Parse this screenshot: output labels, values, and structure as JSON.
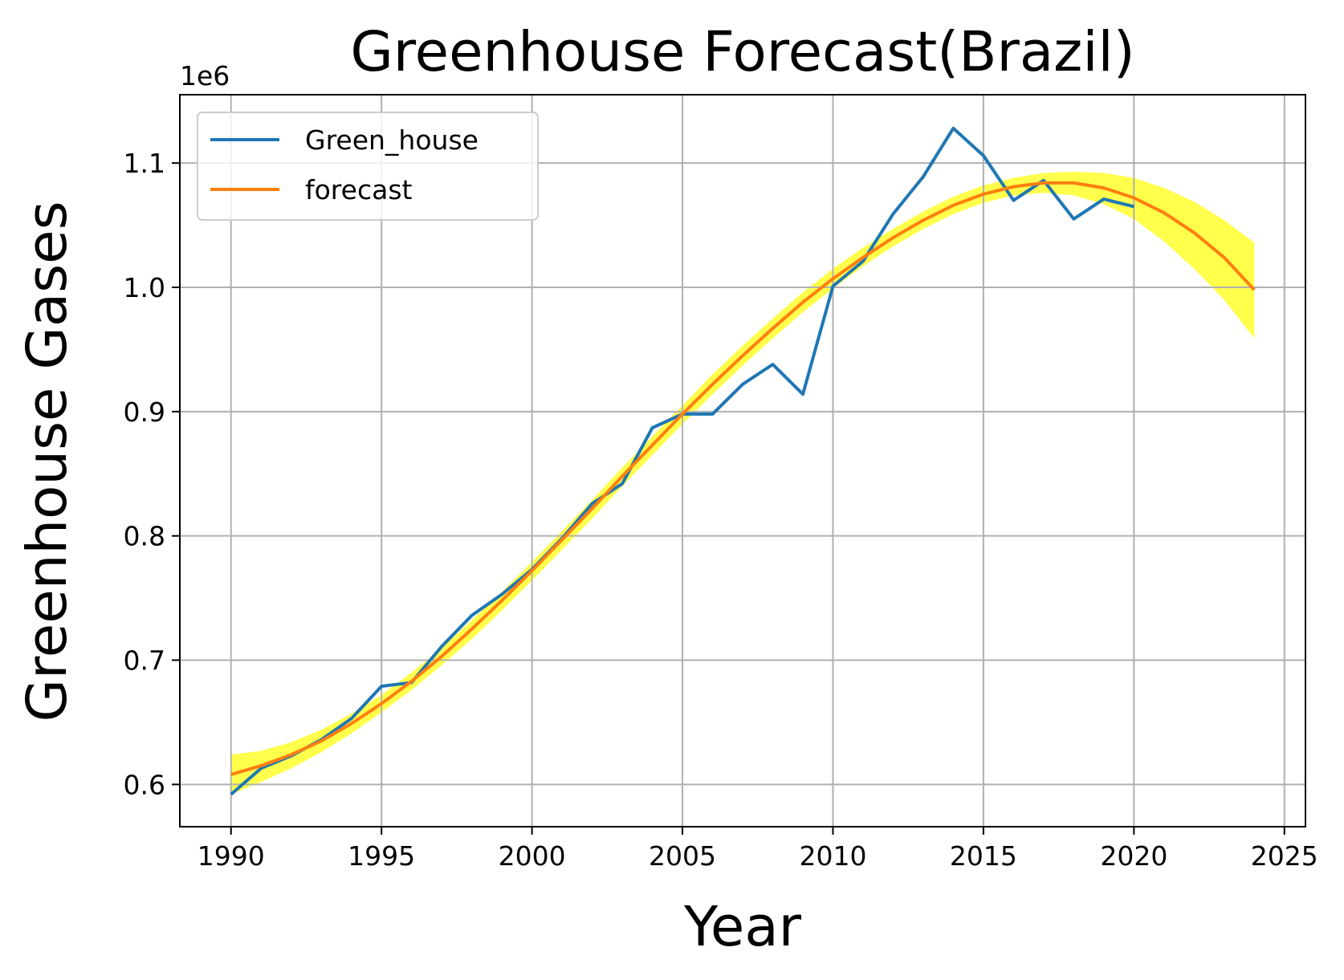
{
  "chart_data": {
    "type": "line",
    "title": "Greenhouse Forecast(Brazil)",
    "xlabel": "Year",
    "ylabel": "Greenhouse Gases",
    "y_offset_label": "1e6",
    "xlim": [
      1988.3,
      2025.7
    ],
    "ylim": [
      0.566,
      1.155
    ],
    "x_ticks": [
      1990,
      1995,
      2000,
      2005,
      2010,
      2015,
      2020,
      2025
    ],
    "y_ticks": [
      0.6,
      0.7,
      0.8,
      0.9,
      1.0,
      1.1
    ],
    "y_tick_labels": [
      "0.6",
      "0.7",
      "0.8",
      "0.9",
      "1.0",
      "1.1"
    ],
    "grid": true,
    "legend_position": "top-left",
    "series": [
      {
        "name": "Green_house",
        "color": "#1f77b4",
        "x": [
          1990,
          1991,
          1992,
          1993,
          1994,
          1995,
          1996,
          1997,
          1998,
          1999,
          2000,
          2001,
          2002,
          2003,
          2004,
          2005,
          2006,
          2007,
          2008,
          2009,
          2010,
          2011,
          2012,
          2013,
          2014,
          2015,
          2016,
          2017,
          2018,
          2019,
          2020
        ],
        "y": [
          0.592,
          0.613,
          0.623,
          0.636,
          0.653,
          0.679,
          0.682,
          0.711,
          0.736,
          0.753,
          0.773,
          0.798,
          0.826,
          0.842,
          0.887,
          0.898,
          0.898,
          0.922,
          0.938,
          0.914,
          1.001,
          1.021,
          1.059,
          1.089,
          1.128,
          1.106,
          1.07,
          1.086,
          1.055,
          1.071,
          1.065
        ]
      },
      {
        "name": "forecast",
        "color": "#ff7f0e",
        "x": [
          1990,
          1991,
          1992,
          1993,
          1994,
          1995,
          1996,
          1997,
          1998,
          1999,
          2000,
          2001,
          2002,
          2003,
          2004,
          2005,
          2006,
          2007,
          2008,
          2009,
          2010,
          2011,
          2012,
          2013,
          2014,
          2015,
          2016,
          2017,
          2018,
          2019,
          2020,
          2021,
          2022,
          2023,
          2024
        ],
        "y": [
          0.608,
          0.615,
          0.624,
          0.635,
          0.649,
          0.665,
          0.683,
          0.703,
          0.725,
          0.748,
          0.772,
          0.797,
          0.822,
          0.848,
          0.873,
          0.898,
          0.922,
          0.945,
          0.967,
          0.988,
          1.007,
          1.024,
          1.04,
          1.054,
          1.066,
          1.075,
          1.081,
          1.084,
          1.084,
          1.08,
          1.072,
          1.06,
          1.044,
          1.024,
          0.998
        ],
        "band": {
          "color": "#ffff00",
          "opacity": 0.7,
          "lower": [
            0.592,
            0.602,
            0.613,
            0.626,
            0.641,
            0.658,
            0.676,
            0.696,
            0.717,
            0.74,
            0.764,
            0.789,
            0.814,
            0.84,
            0.865,
            0.89,
            0.914,
            0.937,
            0.959,
            0.98,
            0.999,
            1.017,
            1.033,
            1.047,
            1.059,
            1.068,
            1.074,
            1.076,
            1.074,
            1.067,
            1.055,
            1.037,
            1.015,
            0.99,
            0.959
          ],
          "upper": [
            0.624,
            0.627,
            0.634,
            0.644,
            0.657,
            0.672,
            0.69,
            0.71,
            0.732,
            0.755,
            0.779,
            0.804,
            0.829,
            0.855,
            0.88,
            0.905,
            0.93,
            0.953,
            0.975,
            0.996,
            1.015,
            1.032,
            1.047,
            1.061,
            1.073,
            1.082,
            1.088,
            1.092,
            1.093,
            1.092,
            1.088,
            1.08,
            1.069,
            1.054,
            1.036
          ]
        }
      }
    ]
  }
}
